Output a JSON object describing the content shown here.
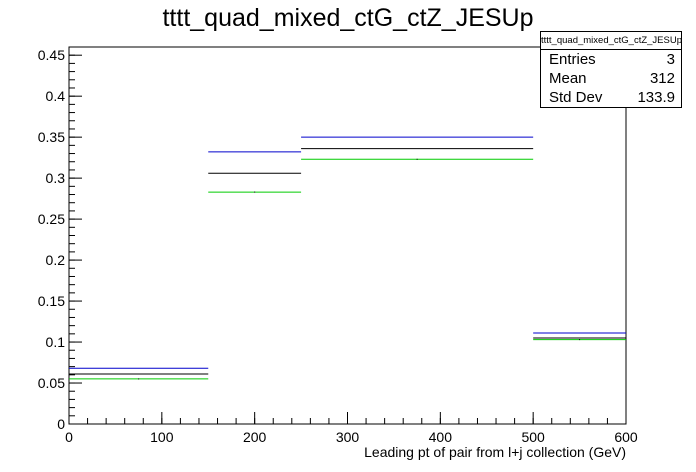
{
  "chart_data": {
    "type": "step",
    "title": "tttt_quad_mixed_ctG_ctZ_JESUp",
    "xlabel": "Leading pt of pair from l+j collection (GeV)",
    "ylabel": "",
    "xlim": [
      0,
      600
    ],
    "ylim": [
      0,
      0.46
    ],
    "x_ticks": [
      0,
      100,
      200,
      300,
      400,
      500,
      600
    ],
    "x_tick_labels": [
      "0",
      "100",
      "200",
      "300",
      "400",
      "500",
      "600"
    ],
    "y_ticks": [
      0,
      0.05,
      0.1,
      0.15,
      0.2,
      0.25,
      0.3,
      0.35,
      0.4,
      0.45
    ],
    "y_tick_labels": [
      "0",
      "0.05",
      "0.1",
      "0.15",
      "0.2",
      "0.25",
      "0.3",
      "0.35",
      "0.4",
      "0.45"
    ],
    "bin_edges": [
      0,
      150,
      250,
      500,
      600
    ],
    "series": [
      {
        "color": "#0000cc",
        "values": [
          0.068,
          0.332,
          0.35,
          0.111
        ]
      },
      {
        "color": "#000000",
        "values": [
          0.061,
          0.306,
          0.336,
          0.105
        ]
      },
      {
        "color": "#00cc00",
        "values": [
          0.055,
          0.283,
          0.323,
          0.103
        ]
      }
    ],
    "grid": false,
    "legend": "none"
  },
  "stats": {
    "name": "tttt_quad_mixed_ctG_ctZ_JESUp",
    "entries_label": "Entries",
    "entries_value": "3",
    "mean_label": "Mean",
    "mean_value": "312",
    "std_label": "Std Dev",
    "std_value": "133.9"
  }
}
